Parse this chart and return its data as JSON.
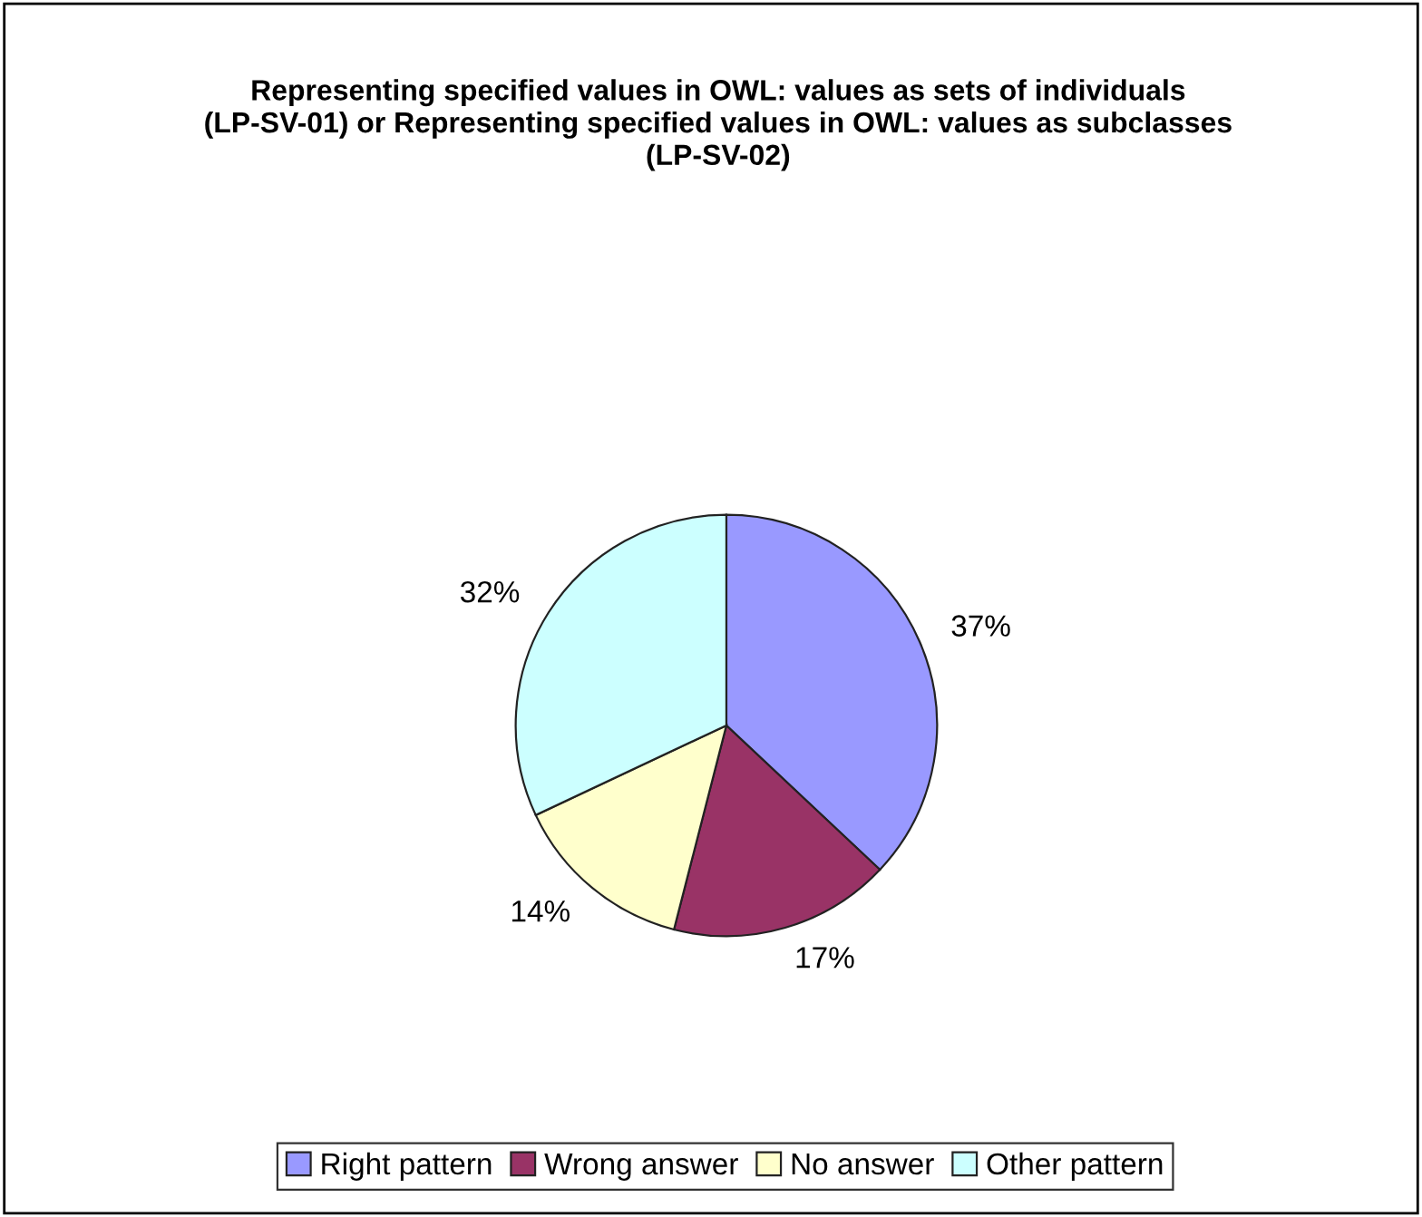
{
  "chart_data": {
    "type": "pie",
    "title": "Representing specified values in OWL: values as sets of individuals (LP-SV-01) or Representing specified values in OWL: values as subclasses (LP-SV-02)",
    "categories": [
      "Right pattern",
      "Wrong answer",
      "No answer",
      "Other pattern"
    ],
    "values": [
      37,
      17,
      14,
      32
    ],
    "colors": [
      "#9999ff",
      "#993366",
      "#ffffcc",
      "#ccffff"
    ],
    "value_labels": [
      "37%",
      "17%",
      "14%",
      "32%"
    ],
    "legend": "bottom"
  }
}
